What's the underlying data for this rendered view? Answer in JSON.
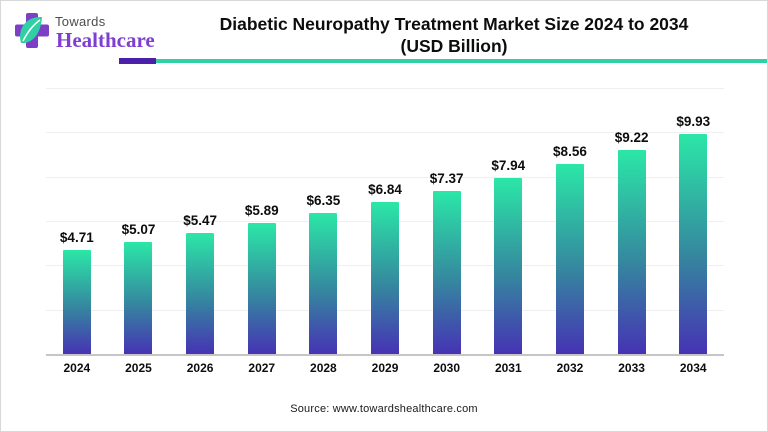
{
  "theme": {
    "accent_purple": "#4a21a8",
    "accent_teal": "#2fd0a4",
    "logo_cross_purple": "#7d3fc6",
    "logo_leaf_teal": "#2fd0a4",
    "brand_name_purple": "#7d3fd2",
    "bar_gradient_top": "#2be7a7",
    "bar_gradient_mid": "#35879f",
    "bar_gradient_bottom": "#4633b4"
  },
  "logo": {
    "brand_top": "Towards",
    "brand_bottom": "Healthcare"
  },
  "header": {
    "title_line1": "Diabetic Neuropathy Treatment Market Size 2024 to 2034",
    "title_line2": "(USD Billion)"
  },
  "chart_data": {
    "type": "bar",
    "title": "Diabetic Neuropathy Treatment Market Size 2024 to 2034 (USD Billion)",
    "categories": [
      "2024",
      "2025",
      "2026",
      "2027",
      "2028",
      "2029",
      "2030",
      "2031",
      "2032",
      "2033",
      "2034"
    ],
    "values": [
      4.71,
      5.07,
      5.47,
      5.89,
      6.35,
      6.84,
      7.37,
      7.94,
      8.56,
      9.22,
      9.93
    ],
    "value_labels": [
      "$4.71",
      "$5.07",
      "$5.47",
      "$5.89",
      "$6.35",
      "$6.84",
      "$7.37",
      "$7.94",
      "$8.56",
      "$9.22",
      "$9.93"
    ],
    "xlabel": "",
    "ylabel": "",
    "ylim": [
      0,
      12
    ],
    "gridline_step": 2,
    "grid": true,
    "legend": false,
    "bar_orientation": "vertical"
  },
  "footer": {
    "source": "Source: www.towardshealthcare.com"
  }
}
